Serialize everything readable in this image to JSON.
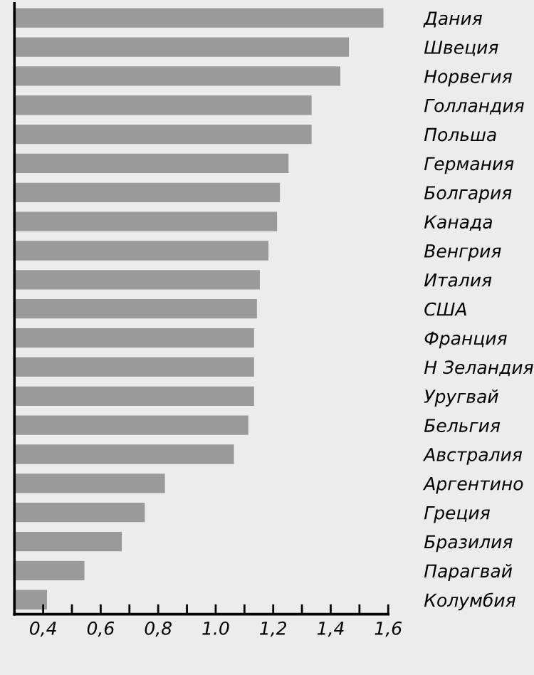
{
  "chart_data": {
    "type": "bar",
    "orientation": "horizontal",
    "categories": [
      "Дания",
      "Швеция",
      "Норвегия",
      "Голландия",
      "Польша",
      "Германия",
      "Болгария",
      "Канада",
      "Венгрия",
      "Италия",
      "США",
      "Франция",
      "Н Зеландия",
      "Уругвай",
      "Бельгия",
      "Австралия",
      "Аргентино",
      "Греция",
      "Бразилия",
      "Парагвай",
      "Колумбия"
    ],
    "values": [
      1.58,
      1.46,
      1.43,
      1.33,
      1.33,
      1.25,
      1.22,
      1.21,
      1.18,
      1.15,
      1.14,
      1.13,
      1.13,
      1.13,
      1.11,
      1.06,
      0.82,
      0.75,
      0.67,
      0.54,
      0.41
    ],
    "color": "#9a9a9a",
    "xlim": [
      0.3,
      1.6
    ],
    "xticks": [
      {
        "value": 0.4,
        "label": "0,4"
      },
      {
        "value": 0.5,
        "label": null
      },
      {
        "value": 0.6,
        "label": "0,6"
      },
      {
        "value": 0.7,
        "label": null
      },
      {
        "value": 0.8,
        "label": "0,8"
      },
      {
        "value": 0.9,
        "label": null
      },
      {
        "value": 1.0,
        "label": "1.0"
      },
      {
        "value": 1.1,
        "label": null
      },
      {
        "value": 1.2,
        "label": "1,2"
      },
      {
        "value": 1.3,
        "label": null
      },
      {
        "value": 1.4,
        "label": "1,4"
      },
      {
        "value": 1.5,
        "label": null
      },
      {
        "value": 1.6,
        "label": "1,6"
      }
    ],
    "grid": false,
    "legend": false
  }
}
